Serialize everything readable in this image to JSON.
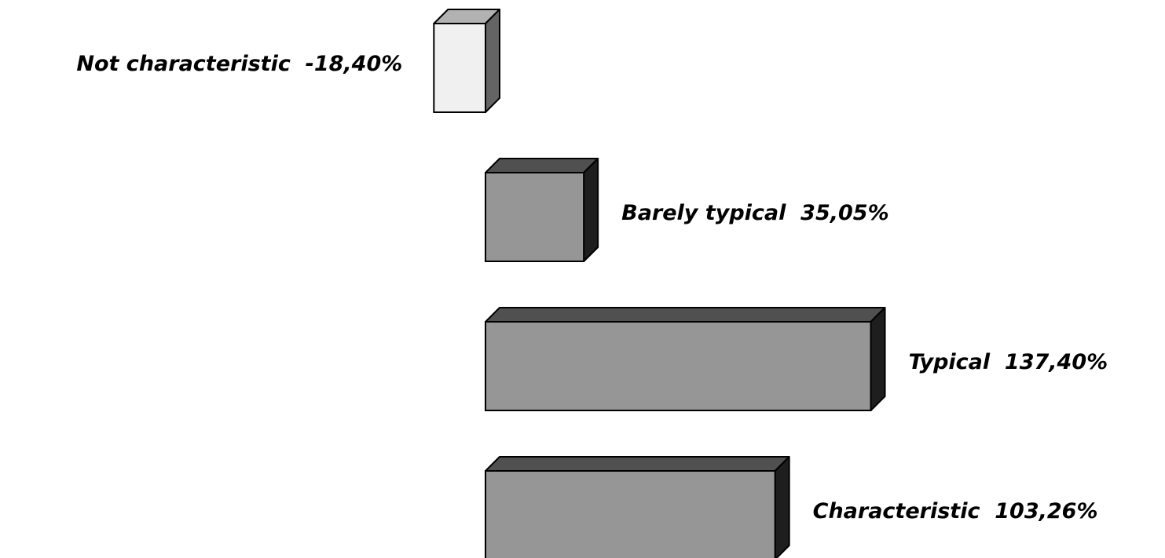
{
  "chart_data": {
    "type": "bar",
    "orientation": "horizontal",
    "style": "3d",
    "unit": "%",
    "categories": [
      "Not characteristic",
      "Barely typical",
      "Typical",
      "Characteristic"
    ],
    "values": [
      -18.4,
      35.05,
      137.4,
      103.26
    ],
    "value_labels": [
      "-18,40%",
      "35,05%",
      "137,40%",
      "103,26%"
    ],
    "grid": false,
    "legend": "none",
    "colors": {
      "negative_front": "#f0f0f0",
      "negative_top": "#b2b2b2",
      "negative_side": "#646464",
      "positive_front": "#969696",
      "positive_top": "#505050",
      "positive_side": "#1e1e1e",
      "outline": "#000000"
    }
  }
}
